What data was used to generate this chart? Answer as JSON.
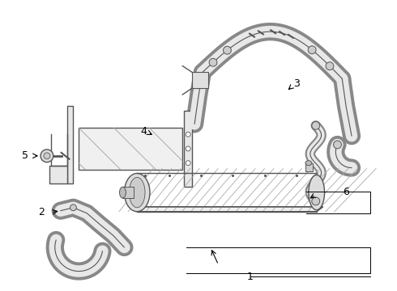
{
  "background_color": "#ffffff",
  "line_color": "#555555",
  "label_color": "#000000",
  "label_fontsize": 9,
  "figsize": [
    4.9,
    3.6
  ],
  "dpi": 100,
  "hose_outer": "#888888",
  "hose_inner": "#e8e8e8",
  "core_bg": "#f0f0f0",
  "core_stripe": "#aaaaaa",
  "bracket_bg": "#e8e8e8"
}
